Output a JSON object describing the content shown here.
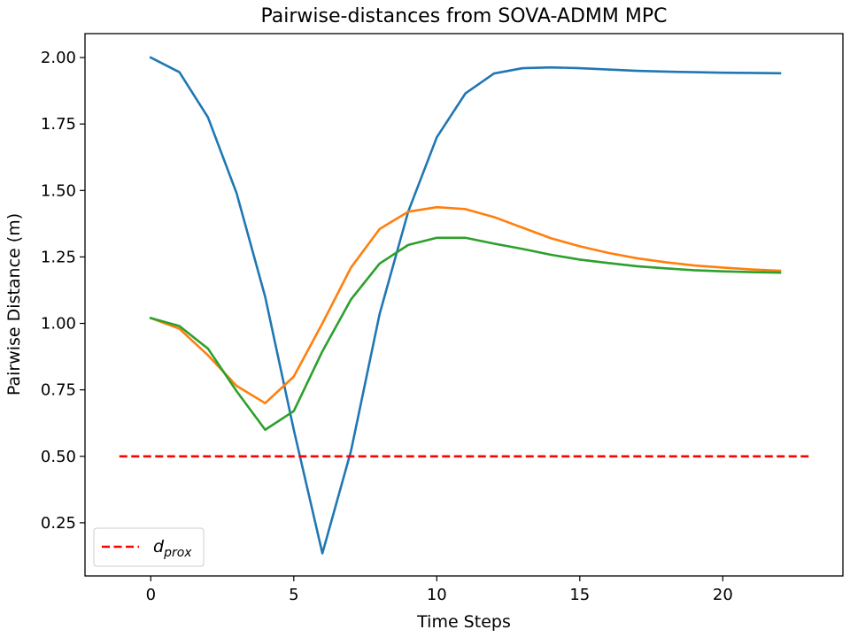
{
  "chart_data": {
    "type": "line",
    "title": "Pairwise-distances from SOVA-ADMM MPC",
    "xlabel": "Time Steps",
    "ylabel": "Pairwise Distance (m)",
    "xlim": [
      -2.3,
      24.2
    ],
    "ylim": [
      0.05,
      2.09
    ],
    "xticks": [
      0,
      5,
      10,
      15,
      20
    ],
    "yticks": [
      0.25,
      0.5,
      0.75,
      1.0,
      1.25,
      1.5,
      1.75,
      2.0
    ],
    "xtick_labels": [
      "0",
      "5",
      "10",
      "15",
      "20"
    ],
    "ytick_labels": [
      "0.25",
      "0.50",
      "0.75",
      "1.00",
      "1.25",
      "1.50",
      "1.75",
      "2.00"
    ],
    "grid": false,
    "legend_position": "lower-left",
    "legend": {
      "label_main": "d",
      "label_sub": "prox"
    },
    "x": [
      0,
      1,
      2,
      3,
      4,
      5,
      6,
      7,
      8,
      9,
      10,
      11,
      12,
      13,
      14,
      15,
      16,
      17,
      18,
      19,
      20,
      21,
      22
    ],
    "series": [
      {
        "color": "#1f77b4",
        "values": [
          2.0,
          1.945,
          1.775,
          1.49,
          1.1,
          0.6,
          0.135,
          0.52,
          1.035,
          1.42,
          1.7,
          1.865,
          1.94,
          1.96,
          1.963,
          1.96,
          1.955,
          1.95,
          1.947,
          1.945,
          1.943,
          1.942,
          1.941
        ]
      },
      {
        "color": "#ff7f0e",
        "values": [
          1.02,
          0.98,
          0.88,
          0.765,
          0.7,
          0.8,
          1.0,
          1.21,
          1.355,
          1.42,
          1.437,
          1.43,
          1.4,
          1.36,
          1.32,
          1.29,
          1.265,
          1.245,
          1.23,
          1.218,
          1.21,
          1.203,
          1.198
        ]
      },
      {
        "color": "#2ca02c",
        "values": [
          1.02,
          0.99,
          0.905,
          0.745,
          0.6,
          0.67,
          0.895,
          1.09,
          1.225,
          1.295,
          1.322,
          1.322,
          1.3,
          1.28,
          1.258,
          1.24,
          1.227,
          1.215,
          1.207,
          1.2,
          1.196,
          1.193,
          1.191
        ]
      }
    ],
    "threshold": {
      "value": 0.5,
      "x_range": [
        -1.1,
        23.1
      ],
      "color": "#ff0000",
      "style": "dashed"
    }
  }
}
